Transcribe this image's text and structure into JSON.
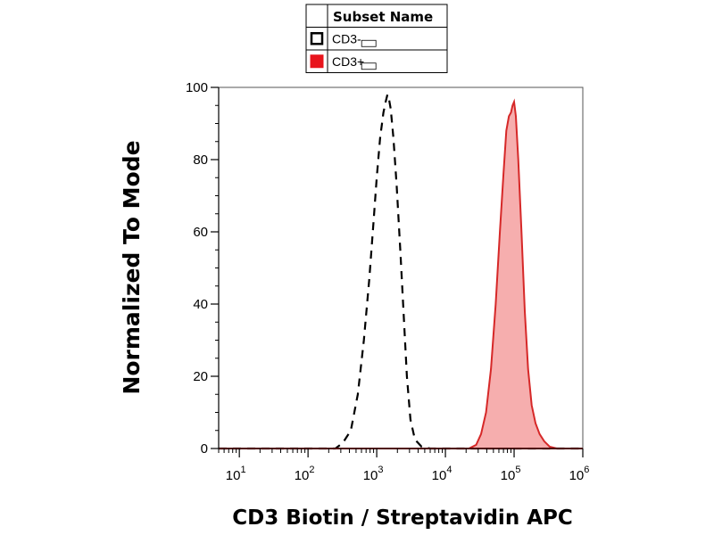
{
  "chart_data": {
    "type": "area",
    "title": "",
    "xlabel": "CD3 Biotin / Streptavidin APC",
    "ylabel": "Normalized To Mode",
    "xscale": "log",
    "xlim": [
      5,
      1000000
    ],
    "ylim": [
      0,
      100
    ],
    "x_tick_labels": [
      {
        "base": "10",
        "exp": "1"
      },
      {
        "base": "10",
        "exp": "2"
      },
      {
        "base": "10",
        "exp": "3"
      },
      {
        "base": "10",
        "exp": "4"
      },
      {
        "base": "10",
        "exp": "5"
      },
      {
        "base": "10",
        "exp": "6"
      }
    ],
    "x_ticks": [
      10,
      100,
      1000,
      10000,
      100000,
      1000000
    ],
    "y_ticks": [
      0,
      20,
      40,
      60,
      80,
      100
    ],
    "y_tick_labels": [
      "0",
      "20",
      "40",
      "60",
      "80",
      "100"
    ],
    "legend": {
      "header": "Subset Name",
      "placement": "top-center",
      "entries": [
        "CD3-",
        "CD3+"
      ]
    },
    "series": [
      {
        "name": "CD3-",
        "style": "dashed-outline",
        "color": "#000000",
        "points": [
          [
            5,
            0
          ],
          [
            250,
            0
          ],
          [
            320,
            1.5
          ],
          [
            420,
            5
          ],
          [
            530,
            15
          ],
          [
            650,
            30
          ],
          [
            780,
            47
          ],
          [
            900,
            63
          ],
          [
            1000,
            75
          ],
          [
            1120,
            86
          ],
          [
            1250,
            93
          ],
          [
            1350,
            96
          ],
          [
            1430,
            98
          ],
          [
            1500,
            97
          ],
          [
            1600,
            94
          ],
          [
            1750,
            86
          ],
          [
            1950,
            73
          ],
          [
            2200,
            55
          ],
          [
            2450,
            38
          ],
          [
            2750,
            20
          ],
          [
            3100,
            8
          ],
          [
            3600,
            2.5
          ],
          [
            4500,
            0.5
          ],
          [
            6000,
            0
          ],
          [
            1000000,
            0
          ]
        ]
      },
      {
        "name": "CD3+",
        "style": "filled",
        "color": "#d62828",
        "fill": "#f4a0a0",
        "points": [
          [
            5,
            0
          ],
          [
            22000,
            0
          ],
          [
            28000,
            1
          ],
          [
            33000,
            4
          ],
          [
            39000,
            10
          ],
          [
            46000,
            22
          ],
          [
            54000,
            40
          ],
          [
            62000,
            60
          ],
          [
            70000,
            76
          ],
          [
            77000,
            88
          ],
          [
            84000,
            92
          ],
          [
            90000,
            93
          ],
          [
            95000,
            95
          ],
          [
            100000,
            96
          ],
          [
            106000,
            92
          ],
          [
            115000,
            80
          ],
          [
            128000,
            60
          ],
          [
            143000,
            38
          ],
          [
            160000,
            22
          ],
          [
            180000,
            12
          ],
          [
            205000,
            7
          ],
          [
            235000,
            4
          ],
          [
            275000,
            2
          ],
          [
            330000,
            0.5
          ],
          [
            420000,
            0
          ],
          [
            1000000,
            0
          ]
        ]
      }
    ]
  }
}
